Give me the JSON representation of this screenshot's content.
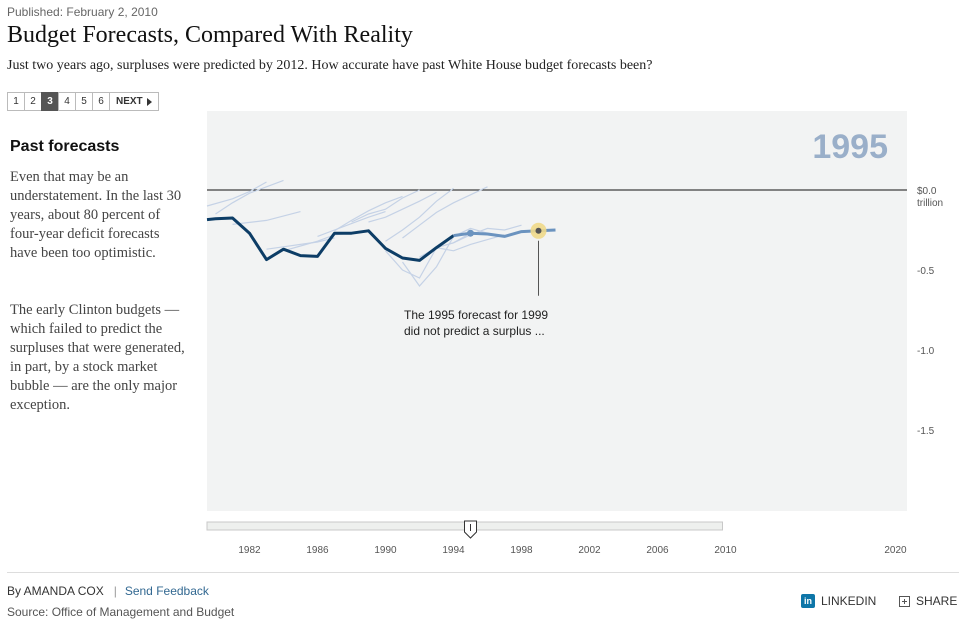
{
  "header": {
    "published": "Published: February 2, 2010",
    "title": "Budget Forecasts, Compared With Reality",
    "subtitle": "Just two years ago, surpluses were predicted by 2012. How accurate have past White House budget forecasts been?"
  },
  "pager": {
    "pages": [
      "1",
      "2",
      "3",
      "4",
      "5",
      "6"
    ],
    "active": "3",
    "next_label": "NEXT"
  },
  "sidebar": {
    "heading": "Past forecasts",
    "paragraph1": "Even that may be an understatement. In the last 30 years, about 80 percent of four-year deficit forecasts have been too optimistic.",
    "paragraph2": "The early Clinton budgets — which failed to predict the surpluses that were generated, in part, by a stock market bubble — are the only major exception."
  },
  "colors": {
    "actual_line": "#0d3d66",
    "current_forecast": "#6b93bf",
    "past_forecasts": "#c5d2e6",
    "plot_bg": "#f2f3f3",
    "year_label": "#9aafc9",
    "highlight": "#f0d98a"
  },
  "chart_data": {
    "type": "line",
    "current_year_label": "1995",
    "ylabel_units": "trillion",
    "ylim": [
      -2.0,
      0.45
    ],
    "xlim": [
      1979.5,
      2021
    ],
    "x_ticks": [
      "1982",
      "1986",
      "1990",
      "1994",
      "1998",
      "2002",
      "2006",
      "2010",
      "2020"
    ],
    "y_ticks": [
      {
        "value": 0,
        "label": "$0.0"
      },
      {
        "value": -0.5,
        "label": "-0.5"
      },
      {
        "value": -1.0,
        "label": "-1.0"
      },
      {
        "value": -1.5,
        "label": "-1.5"
      }
    ],
    "actual": {
      "x": [
        1979.5,
        1980,
        1981,
        1982,
        1983,
        1984,
        1985,
        1986,
        1987,
        1988,
        1989,
        1990,
        1991,
        1992,
        1993,
        1994
      ],
      "y": [
        -0.185,
        -0.18,
        -0.175,
        -0.27,
        -0.435,
        -0.37,
        -0.41,
        -0.415,
        -0.27,
        -0.27,
        -0.255,
        -0.365,
        -0.425,
        -0.44,
        -0.36,
        -0.285
      ]
    },
    "current_forecast": {
      "year": 1995,
      "x": [
        1994,
        1995,
        1996,
        1997,
        1998,
        1999,
        2000
      ],
      "y": [
        -0.285,
        -0.27,
        -0.275,
        -0.29,
        -0.26,
        -0.255,
        -0.25
      ]
    },
    "past_forecasts": [
      {
        "x": [
          1979.5,
          1981,
          1982,
          1983
        ],
        "y": [
          -0.1,
          -0.055,
          -0.01,
          0.05
        ]
      },
      {
        "x": [
          1980,
          1981,
          1982,
          1984
        ],
        "y": [
          -0.15,
          -0.08,
          -0.02,
          0.06
        ]
      },
      {
        "x": [
          1981,
          1983,
          1985
        ],
        "y": [
          -0.215,
          -0.19,
          -0.135
        ]
      },
      {
        "x": [
          1983,
          1984,
          1985,
          1986,
          1987
        ],
        "y": [
          -0.37,
          -0.355,
          -0.34,
          -0.325,
          -0.3
        ]
      },
      {
        "x": [
          1984,
          1985,
          1986,
          1987,
          1988
        ],
        "y": [
          -0.38,
          -0.35,
          -0.32,
          -0.28,
          -0.27
        ]
      },
      {
        "x": [
          1986,
          1987,
          1988,
          1989,
          1990
        ],
        "y": [
          -0.29,
          -0.25,
          -0.21,
          -0.17,
          -0.135
        ]
      },
      {
        "x": [
          1987,
          1988,
          1989,
          1990,
          1991
        ],
        "y": [
          -0.255,
          -0.19,
          -0.13,
          -0.08,
          -0.04
        ]
      },
      {
        "x": [
          1988,
          1989,
          1990,
          1991,
          1992
        ],
        "y": [
          -0.2,
          -0.15,
          -0.12,
          -0.05,
          0.0
        ]
      },
      {
        "x": [
          1989,
          1990,
          1991,
          1992,
          1993
        ],
        "y": [
          -0.2,
          -0.17,
          -0.12,
          -0.07,
          -0.015
        ]
      },
      {
        "x": [
          1990,
          1991,
          1992,
          1993,
          1994
        ],
        "y": [
          -0.32,
          -0.25,
          -0.17,
          -0.07,
          0.01
        ]
      },
      {
        "x": [
          1991,
          1992,
          1993,
          1994,
          1995,
          1996
        ],
        "y": [
          -0.3,
          -0.22,
          -0.14,
          -0.08,
          -0.03,
          0.02
        ]
      },
      {
        "x": [
          1990,
          1991,
          1992,
          1993,
          1994,
          1995
        ],
        "y": [
          -0.38,
          -0.5,
          -0.55,
          -0.36,
          -0.33,
          -0.27
        ]
      },
      {
        "x": [
          1991,
          1992,
          1993,
          1994,
          1995,
          1996
        ],
        "y": [
          -0.45,
          -0.6,
          -0.48,
          -0.29,
          -0.24,
          -0.27
        ]
      },
      {
        "x": [
          1992,
          1993,
          1994,
          1995,
          1996,
          1997
        ],
        "y": [
          -0.42,
          -0.36,
          -0.38,
          -0.34,
          -0.31,
          -0.28
        ]
      },
      {
        "x": [
          1993,
          1994,
          1995,
          1996,
          1997,
          1998
        ],
        "y": [
          -0.36,
          -0.33,
          -0.28,
          -0.24,
          -0.25,
          -0.22
        ]
      }
    ],
    "highlight_point": {
      "x": 1999,
      "y": -0.255
    },
    "annotation": {
      "line1": "The 1995 forecast for 1999",
      "line2": "did not predict a surplus ..."
    },
    "slider": {
      "range": [
        1979.5,
        2010
      ],
      "value": 1995
    },
    "grid": false
  },
  "footer": {
    "byline": "By AMANDA COX",
    "separator": "|",
    "feedback_label": "Send Feedback",
    "source": "Source: Office of Management and Budget",
    "linkedin_label": "LINKEDIN",
    "linkedin_icon_text": "in",
    "share_label": "SHARE"
  }
}
